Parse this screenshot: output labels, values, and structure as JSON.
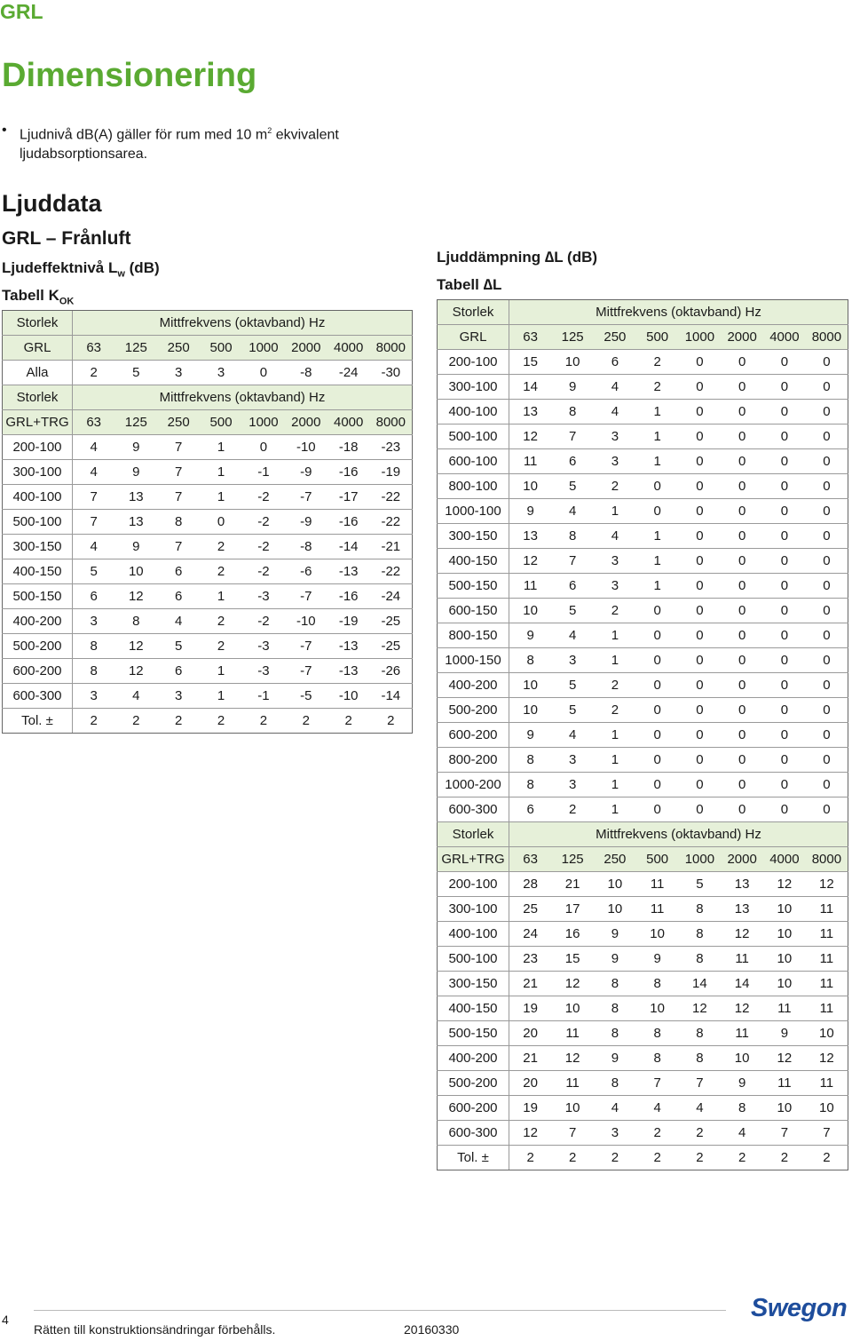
{
  "header": {
    "product": "GRL"
  },
  "page_title": "Dimensionering",
  "bullet": {
    "text_before": "Ljudnivå dB(A) gäller för rum med 10 m",
    "superscript": "2",
    "text_after": " ekvivalent ljudabsorptionsarea."
  },
  "ljuddata": {
    "title": "Ljuddata",
    "subtitle": "GRL – Frånluft",
    "heading_prefix": "Ljudeffektnivå L",
    "heading_sub": "w",
    "heading_suffix": " (dB)",
    "table_prefix": "Tabell K",
    "table_sub": "OK",
    "table": {
      "blocks": [
        {
          "storlek_label": "Storlek",
          "freq_label": "Mittfrekvens (oktavband) Hz",
          "name": "GRL",
          "freqs": [
            "63",
            "125",
            "250",
            "500",
            "1000",
            "2000",
            "4000",
            "8000"
          ],
          "rows": [
            {
              "size": "Alla",
              "vals": [
                "2",
                "5",
                "3",
                "3",
                "0",
                "-8",
                "-24",
                "-30"
              ]
            }
          ]
        },
        {
          "storlek_label": "Storlek",
          "freq_label": "Mittfrekvens (oktavband) Hz",
          "name": "GRL+TRG",
          "freqs": [
            "63",
            "125",
            "250",
            "500",
            "1000",
            "2000",
            "4000",
            "8000"
          ],
          "rows": [
            {
              "size": "200-100",
              "vals": [
                "4",
                "9",
                "7",
                "1",
                "0",
                "-10",
                "-18",
                "-23"
              ]
            },
            {
              "size": "300-100",
              "vals": [
                "4",
                "9",
                "7",
                "1",
                "-1",
                "-9",
                "-16",
                "-19"
              ]
            },
            {
              "size": "400-100",
              "vals": [
                "7",
                "13",
                "7",
                "1",
                "-2",
                "-7",
                "-17",
                "-22"
              ]
            },
            {
              "size": "500-100",
              "vals": [
                "7",
                "13",
                "8",
                "0",
                "-2",
                "-9",
                "-16",
                "-22"
              ]
            },
            {
              "size": "300-150",
              "vals": [
                "4",
                "9",
                "7",
                "2",
                "-2",
                "-8",
                "-14",
                "-21"
              ]
            },
            {
              "size": "400-150",
              "vals": [
                "5",
                "10",
                "6",
                "2",
                "-2",
                "-6",
                "-13",
                "-22"
              ]
            },
            {
              "size": "500-150",
              "vals": [
                "6",
                "12",
                "6",
                "1",
                "-3",
                "-7",
                "-16",
                "-24"
              ]
            },
            {
              "size": "400-200",
              "vals": [
                "3",
                "8",
                "4",
                "2",
                "-2",
                "-10",
                "-19",
                "-25"
              ]
            },
            {
              "size": "500-200",
              "vals": [
                "8",
                "12",
                "5",
                "2",
                "-3",
                "-7",
                "-13",
                "-25"
              ]
            },
            {
              "size": "600-200",
              "vals": [
                "8",
                "12",
                "6",
                "1",
                "-3",
                "-7",
                "-13",
                "-26"
              ]
            },
            {
              "size": "600-300",
              "vals": [
                "3",
                "4",
                "3",
                "1",
                "-1",
                "-5",
                "-10",
                "-14"
              ]
            },
            {
              "size": "Tol. ±",
              "vals": [
                "2",
                "2",
                "2",
                "2",
                "2",
                "2",
                "2",
                "2"
              ]
            }
          ]
        }
      ]
    }
  },
  "ljuddampning": {
    "heading_prefix": "Ljuddämpning ",
    "heading_delta": "∆L",
    "heading_suffix": " (dB)",
    "table_prefix": "Tabell ",
    "table_delta": "∆L",
    "table": {
      "blocks": [
        {
          "storlek_label": "Storlek",
          "freq_label": "Mittfrekvens (oktavband) Hz",
          "name": "GRL",
          "freqs": [
            "63",
            "125",
            "250",
            "500",
            "1000",
            "2000",
            "4000",
            "8000"
          ],
          "rows": [
            {
              "size": "200-100",
              "vals": [
                "15",
                "10",
                "6",
                "2",
                "0",
                "0",
                "0",
                "0"
              ]
            },
            {
              "size": "300-100",
              "vals": [
                "14",
                "9",
                "4",
                "2",
                "0",
                "0",
                "0",
                "0"
              ]
            },
            {
              "size": "400-100",
              "vals": [
                "13",
                "8",
                "4",
                "1",
                "0",
                "0",
                "0",
                "0"
              ]
            },
            {
              "size": "500-100",
              "vals": [
                "12",
                "7",
                "3",
                "1",
                "0",
                "0",
                "0",
                "0"
              ]
            },
            {
              "size": "600-100",
              "vals": [
                "11",
                "6",
                "3",
                "1",
                "0",
                "0",
                "0",
                "0"
              ]
            },
            {
              "size": "800-100",
              "vals": [
                "10",
                "5",
                "2",
                "0",
                "0",
                "0",
                "0",
                "0"
              ]
            },
            {
              "size": "1000-100",
              "vals": [
                "9",
                "4",
                "1",
                "0",
                "0",
                "0",
                "0",
                "0"
              ]
            },
            {
              "size": "300-150",
              "vals": [
                "13",
                "8",
                "4",
                "1",
                "0",
                "0",
                "0",
                "0"
              ]
            },
            {
              "size": "400-150",
              "vals": [
                "12",
                "7",
                "3",
                "1",
                "0",
                "0",
                "0",
                "0"
              ]
            },
            {
              "size": "500-150",
              "vals": [
                "11",
                "6",
                "3",
                "1",
                "0",
                "0",
                "0",
                "0"
              ]
            },
            {
              "size": "600-150",
              "vals": [
                "10",
                "5",
                "2",
                "0",
                "0",
                "0",
                "0",
                "0"
              ]
            },
            {
              "size": "800-150",
              "vals": [
                "9",
                "4",
                "1",
                "0",
                "0",
                "0",
                "0",
                "0"
              ]
            },
            {
              "size": "1000-150",
              "vals": [
                "8",
                "3",
                "1",
                "0",
                "0",
                "0",
                "0",
                "0"
              ]
            },
            {
              "size": "400-200",
              "vals": [
                "10",
                "5",
                "2",
                "0",
                "0",
                "0",
                "0",
                "0"
              ]
            },
            {
              "size": "500-200",
              "vals": [
                "10",
                "5",
                "2",
                "0",
                "0",
                "0",
                "0",
                "0"
              ]
            },
            {
              "size": "600-200",
              "vals": [
                "9",
                "4",
                "1",
                "0",
                "0",
                "0",
                "0",
                "0"
              ]
            },
            {
              "size": "800-200",
              "vals": [
                "8",
                "3",
                "1",
                "0",
                "0",
                "0",
                "0",
                "0"
              ]
            },
            {
              "size": "1000-200",
              "vals": [
                "8",
                "3",
                "1",
                "0",
                "0",
                "0",
                "0",
                "0"
              ]
            },
            {
              "size": "600-300",
              "vals": [
                "6",
                "2",
                "1",
                "0",
                "0",
                "0",
                "0",
                "0"
              ]
            }
          ]
        },
        {
          "storlek_label": "Storlek",
          "freq_label": "Mittfrekvens (oktavband) Hz",
          "name": "GRL+TRG",
          "freqs": [
            "63",
            "125",
            "250",
            "500",
            "1000",
            "2000",
            "4000",
            "8000"
          ],
          "rows": [
            {
              "size": "200-100",
              "vals": [
                "28",
                "21",
                "10",
                "11",
                "5",
                "13",
                "12",
                "12"
              ]
            },
            {
              "size": "300-100",
              "vals": [
                "25",
                "17",
                "10",
                "11",
                "8",
                "13",
                "10",
                "11"
              ]
            },
            {
              "size": "400-100",
              "vals": [
                "24",
                "16",
                "9",
                "10",
                "8",
                "12",
                "10",
                "11"
              ]
            },
            {
              "size": "500-100",
              "vals": [
                "23",
                "15",
                "9",
                "9",
                "8",
                "11",
                "10",
                "11"
              ]
            },
            {
              "size": "300-150",
              "vals": [
                "21",
                "12",
                "8",
                "8",
                "14",
                "14",
                "10",
                "11"
              ]
            },
            {
              "size": "400-150",
              "vals": [
                "19",
                "10",
                "8",
                "10",
                "12",
                "12",
                "11",
                "11"
              ]
            },
            {
              "size": "500-150",
              "vals": [
                "20",
                "11",
                "8",
                "8",
                "8",
                "11",
                "9",
                "10"
              ]
            },
            {
              "size": "400-200",
              "vals": [
                "21",
                "12",
                "9",
                "8",
                "8",
                "10",
                "12",
                "12"
              ]
            },
            {
              "size": "500-200",
              "vals": [
                "20",
                "11",
                "8",
                "7",
                "7",
                "9",
                "11",
                "11"
              ]
            },
            {
              "size": "600-200",
              "vals": [
                "19",
                "10",
                "4",
                "4",
                "4",
                "8",
                "10",
                "10"
              ]
            },
            {
              "size": "600-300",
              "vals": [
                "12",
                "7",
                "3",
                "2",
                "2",
                "4",
                "7",
                "7"
              ]
            },
            {
              "size": "Tol. ±",
              "vals": [
                "2",
                "2",
                "2",
                "2",
                "2",
                "2",
                "2",
                "2"
              ]
            }
          ]
        }
      ]
    }
  },
  "footer": {
    "page_number": "4",
    "disclaimer": "Rätten till konstruktionsändringar förbehålls.",
    "date": "20160330",
    "logo": "Swegon"
  },
  "colors": {
    "brand_green": "#5aaa32",
    "header_fill": "#e6f0d9",
    "logo_blue": "#1e4d9c"
  }
}
